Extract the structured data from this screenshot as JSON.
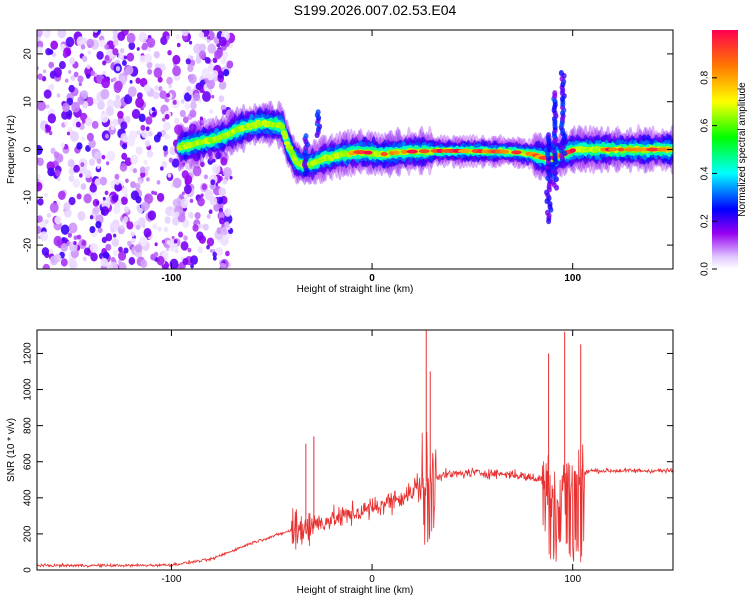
{
  "title": "S199.2026.007.02.53.E04",
  "chart_data": [
    {
      "type": "heatmap",
      "xlabel": "Height of straight line (km)",
      "ylabel": "Frequency (Hz)",
      "xlim": [
        -167,
        150
      ],
      "ylim": [
        -25,
        25
      ],
      "xticks": [
        -100,
        0,
        100
      ],
      "yticks": [
        -20,
        -10,
        0,
        10,
        20
      ],
      "colorbar": {
        "label": "Normalized spectral amplitude",
        "range": [
          0,
          1
        ],
        "ticks": [
          0.0,
          0.2,
          0.4,
          0.6,
          0.8
        ],
        "tick_labels": [
          "0.0",
          "0.2",
          "0.4",
          "0.6",
          "0.8"
        ]
      },
      "ridge": [
        {
          "x": -95,
          "f": 0.5
        },
        {
          "x": -85,
          "f": 1.5
        },
        {
          "x": -75,
          "f": 2.5
        },
        {
          "x": -65,
          "f": 4.5
        },
        {
          "x": -55,
          "f": 5.5
        },
        {
          "x": -45,
          "f": 5.0
        },
        {
          "x": -42,
          "f": 1.0
        },
        {
          "x": -38,
          "f": -2.5
        },
        {
          "x": -33,
          "f": -3.5
        },
        {
          "x": -25,
          "f": -2.0
        },
        {
          "x": -15,
          "f": -1.0
        },
        {
          "x": -5,
          "f": -0.5
        },
        {
          "x": 5,
          "f": -1.0
        },
        {
          "x": 15,
          "f": -0.5
        },
        {
          "x": 30,
          "f": -0.3
        },
        {
          "x": 50,
          "f": -0.3
        },
        {
          "x": 70,
          "f": -0.5
        },
        {
          "x": 80,
          "f": -1.0
        },
        {
          "x": 88,
          "f": -2.0
        },
        {
          "x": 95,
          "f": -1.0
        },
        {
          "x": 101,
          "f": 0.0
        },
        {
          "x": 120,
          "f": 0.0
        },
        {
          "x": 150,
          "f": 0.0
        }
      ]
    },
    {
      "type": "line",
      "xlabel": "Height of straight line (km)",
      "ylabel": "SNR (10 * v/v)",
      "xlim": [
        -167,
        150
      ],
      "ylim": [
        0,
        1330
      ],
      "xticks": [
        -100,
        0,
        100
      ],
      "yticks": [
        0,
        200,
        400,
        600,
        800,
        1000,
        1200
      ],
      "color": "#e83030",
      "baseline": [
        {
          "x": -167,
          "y": 25
        },
        {
          "x": -120,
          "y": 25
        },
        {
          "x": -100,
          "y": 28
        },
        {
          "x": -80,
          "y": 60
        },
        {
          "x": -60,
          "y": 150
        },
        {
          "x": -40,
          "y": 220
        },
        {
          "x": -20,
          "y": 280
        },
        {
          "x": 0,
          "y": 340
        },
        {
          "x": 20,
          "y": 430
        },
        {
          "x": 30,
          "y": 520
        },
        {
          "x": 50,
          "y": 540
        },
        {
          "x": 70,
          "y": 530
        },
        {
          "x": 85,
          "y": 500
        },
        {
          "x": 100,
          "y": 480
        },
        {
          "x": 108,
          "y": 550
        },
        {
          "x": 150,
          "y": 550
        }
      ],
      "spikes": [
        {
          "x": -33,
          "y": 700
        },
        {
          "x": -29,
          "y": 740
        },
        {
          "x": 27,
          "y": 1330
        },
        {
          "x": 29,
          "y": 1100
        },
        {
          "x": 88,
          "y": 1200
        },
        {
          "x": 96,
          "y": 1320
        },
        {
          "x": 104,
          "y": 1250
        }
      ]
    }
  ]
}
